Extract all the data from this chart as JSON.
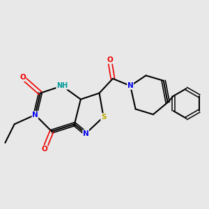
{
  "background_color": "#e8e8e8",
  "fig_size": [
    3.0,
    3.0
  ],
  "dpi": 100,
  "atom_colors": {
    "C": "#000000",
    "N": "#0000ee",
    "O": "#ee0000",
    "S": "#bbaa00",
    "NH": "#009999"
  }
}
